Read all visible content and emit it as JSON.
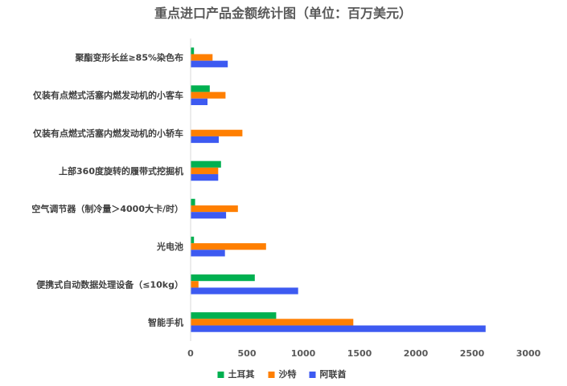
{
  "chart_data": {
    "type": "bar",
    "orientation": "horizontal",
    "title": "重点进口产品金额统计图（单位：百万美元）",
    "xlabel": "",
    "ylabel": "",
    "xlim": [
      0,
      3000
    ],
    "ticks": [
      0,
      500,
      1000,
      1500,
      2000,
      2500,
      3000
    ],
    "grid": false,
    "legend_position": "bottom",
    "categories": [
      "聚酯变形长丝≥85%染色布",
      "仅装有点燃式活塞内燃发动机的小客车",
      "仅装有点燃式活塞内燃发动机的小轿车",
      "上部360度旋转的履带式挖掘机",
      "空气调节器（制冷量＞4000大卡/时）",
      "光电池",
      "便携式自动数据处理设备（≤10kg）",
      "智能手机"
    ],
    "series": [
      {
        "name": "土耳其",
        "color": "#00b050",
        "values": [
          30,
          170,
          0,
          270,
          40,
          30,
          570,
          760
        ]
      },
      {
        "name": "沙特",
        "color": "#ff7f00",
        "values": [
          195,
          310,
          460,
          245,
          420,
          670,
          70,
          1445
        ]
      },
      {
        "name": "阿联酋",
        "color": "#3d5af1",
        "values": [
          330,
          150,
          250,
          245,
          315,
          305,
          955,
          2620
        ]
      }
    ]
  }
}
